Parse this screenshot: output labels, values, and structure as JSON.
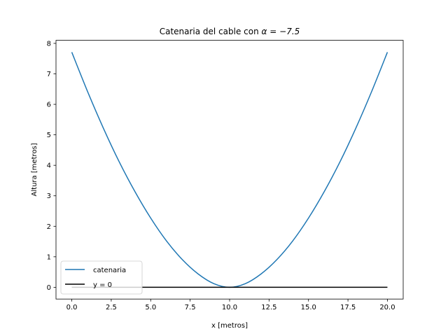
{
  "chart_data": {
    "type": "line",
    "title_prefix": "Catenaria del cable con ",
    "title_math": "α = −7.5",
    "xlabel": "x [metros]",
    "ylabel": "Altura [metros]",
    "xlim": [
      -1,
      21
    ],
    "ylim": [
      -0.386,
      8.1
    ],
    "xticks": [
      0.0,
      2.5,
      5.0,
      7.5,
      10.0,
      12.5,
      15.0,
      17.5,
      20.0
    ],
    "xtick_labels": [
      "0.0",
      "2.5",
      "5.0",
      "7.5",
      "10.0",
      "12.5",
      "15.0",
      "17.5",
      "20.0"
    ],
    "yticks": [
      0,
      1,
      2,
      3,
      4,
      5,
      6,
      7,
      8
    ],
    "ytick_labels": [
      "0",
      "1",
      "2",
      "3",
      "4",
      "5",
      "6",
      "7",
      "8"
    ],
    "grid": false,
    "legend_position": "lower left",
    "series": [
      {
        "name": "catenaria",
        "color": "#1f77b4",
        "x": [
          0,
          1,
          2,
          3,
          4,
          5,
          6,
          7,
          8,
          9,
          10,
          11,
          12,
          13,
          14,
          15,
          16,
          17,
          18,
          19,
          20
        ],
        "y": [
          7.71,
          6.42,
          5.22,
          4.12,
          3.14,
          2.27,
          1.52,
          0.91,
          0.44,
          0.12,
          0.0,
          0.12,
          0.44,
          0.91,
          1.52,
          2.27,
          3.14,
          4.12,
          5.22,
          6.42,
          7.71
        ]
      },
      {
        "name": "y = 0",
        "color": "#000000",
        "x": [
          0,
          20
        ],
        "y": [
          0,
          0
        ]
      }
    ]
  }
}
